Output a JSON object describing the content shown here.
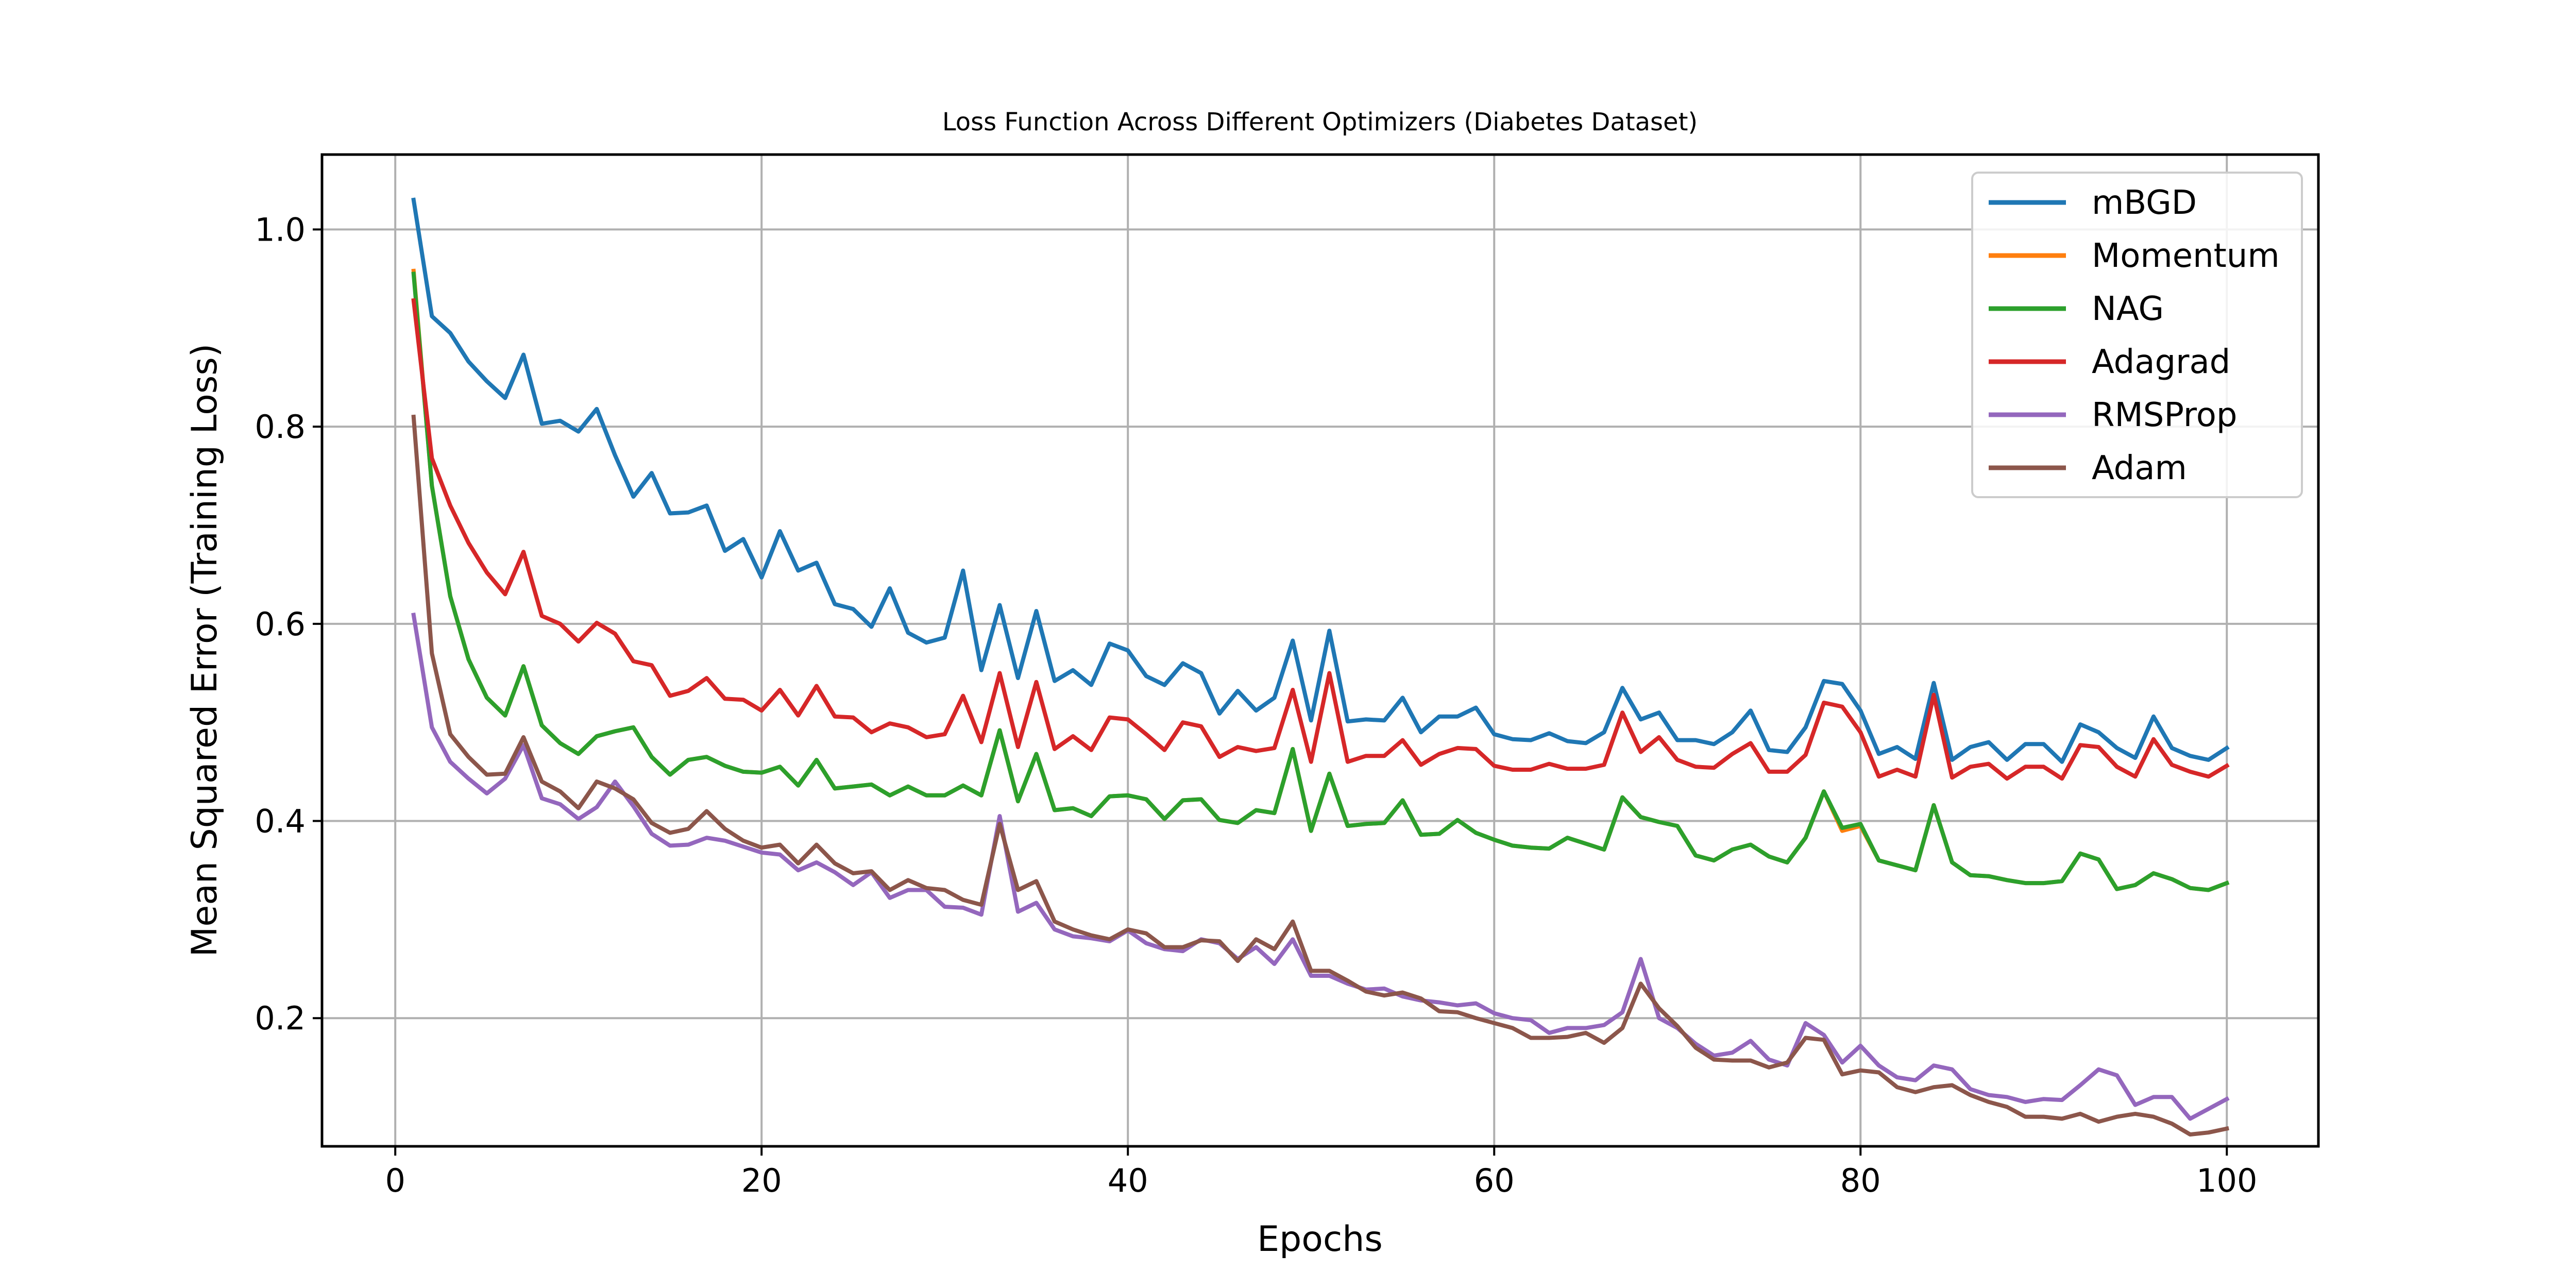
{
  "chart_data": {
    "type": "line",
    "title": "Loss Function Across Different Optimizers (Diabetes Dataset)",
    "xlabel": "Epochs",
    "ylabel": "Mean Squared Error (Training Loss)",
    "xlim": [
      -4,
      105
    ],
    "ylim": [
      0.07,
      1.076
    ],
    "xticks": [
      0,
      20,
      40,
      60,
      80,
      100
    ],
    "xtick_labels": [
      "0",
      "20",
      "40",
      "60",
      "80",
      "100"
    ],
    "yticks": [
      0.2,
      0.4,
      0.6,
      0.8,
      1.0
    ],
    "ytick_labels": [
      "0.2",
      "0.4",
      "0.6",
      "0.8",
      "1.0"
    ],
    "grid": true,
    "legend_position": "top-right",
    "x": [
      1,
      2,
      3,
      4,
      5,
      6,
      7,
      8,
      9,
      10,
      11,
      12,
      13,
      14,
      15,
      16,
      17,
      18,
      19,
      20,
      21,
      22,
      23,
      24,
      25,
      26,
      27,
      28,
      29,
      30,
      31,
      32,
      33,
      34,
      35,
      36,
      37,
      38,
      39,
      40,
      41,
      42,
      43,
      44,
      45,
      46,
      47,
      48,
      49,
      50,
      51,
      52,
      53,
      54,
      55,
      56,
      57,
      58,
      59,
      60,
      61,
      62,
      63,
      64,
      65,
      66,
      67,
      68,
      69,
      70,
      71,
      72,
      73,
      74,
      75,
      76,
      77,
      78,
      79,
      80,
      81,
      82,
      83,
      84,
      85,
      86,
      87,
      88,
      89,
      90,
      91,
      92,
      93,
      94,
      95,
      96,
      97,
      98,
      99,
      100
    ],
    "series": [
      {
        "name": "mBGD",
        "color": "#1f77b4",
        "values": [
          1.03,
          0.912,
          0.895,
          0.866,
          0.846,
          0.829,
          0.873,
          0.803,
          0.806,
          0.795,
          0.818,
          0.771,
          0.729,
          0.753,
          0.712,
          0.713,
          0.72,
          0.674,
          0.686,
          0.647,
          0.694,
          0.654,
          0.662,
          0.62,
          0.615,
          0.597,
          0.636,
          0.591,
          0.581,
          0.586,
          0.654,
          0.553,
          0.619,
          0.545,
          0.613,
          0.542,
          0.553,
          0.538,
          0.58,
          0.573,
          0.547,
          0.538,
          0.56,
          0.55,
          0.509,
          0.532,
          0.512,
          0.525,
          0.583,
          0.502,
          0.593,
          0.501,
          0.503,
          0.502,
          0.525,
          0.49,
          0.506,
          0.506,
          0.515,
          0.488,
          0.483,
          0.482,
          0.489,
          0.481,
          0.479,
          0.49,
          0.535,
          0.503,
          0.51,
          0.482,
          0.482,
          0.478,
          0.49,
          0.512,
          0.472,
          0.47,
          0.495,
          0.542,
          0.539,
          0.512,
          0.468,
          0.475,
          0.463,
          0.54,
          0.462,
          0.475,
          0.48,
          0.462,
          0.478,
          0.478,
          0.46,
          0.498,
          0.49,
          0.474,
          0.464,
          0.506,
          0.474,
          0.466,
          0.462,
          0.474
        ]
      },
      {
        "name": "Momentum",
        "color": "#ff7f0e",
        "values": [
          0.958,
          0.74,
          0.628,
          0.564,
          0.525,
          0.507,
          0.557,
          0.497,
          0.479,
          0.468,
          0.486,
          0.491,
          0.495,
          0.465,
          0.447,
          0.462,
          0.465,
          0.456,
          0.45,
          0.449,
          0.455,
          0.436,
          0.462,
          0.433,
          0.435,
          0.437,
          0.426,
          0.435,
          0.426,
          0.426,
          0.436,
          0.426,
          0.492,
          0.42,
          0.468,
          0.411,
          0.413,
          0.405,
          0.425,
          0.426,
          0.422,
          0.402,
          0.421,
          0.422,
          0.401,
          0.398,
          0.411,
          0.408,
          0.473,
          0.39,
          0.448,
          0.395,
          0.397,
          0.398,
          0.421,
          0.386,
          0.387,
          0.401,
          0.388,
          0.381,
          0.375,
          0.373,
          0.372,
          0.383,
          0.377,
          0.371,
          0.424,
          0.404,
          0.399,
          0.395,
          0.365,
          0.36,
          0.371,
          0.376,
          0.364,
          0.358,
          0.383,
          0.43,
          0.39,
          0.395,
          0.36,
          0.355,
          0.35,
          0.416,
          0.358,
          0.345,
          0.344,
          0.34,
          0.337,
          0.337,
          0.339,
          0.367,
          0.361,
          0.331,
          0.335,
          0.347,
          0.341,
          0.332,
          0.33,
          0.337
        ]
      },
      {
        "name": "NAG",
        "color": "#2ca02c",
        "values": [
          0.955,
          0.74,
          0.628,
          0.564,
          0.525,
          0.507,
          0.557,
          0.497,
          0.479,
          0.468,
          0.486,
          0.491,
          0.495,
          0.465,
          0.447,
          0.462,
          0.465,
          0.456,
          0.45,
          0.449,
          0.455,
          0.436,
          0.462,
          0.433,
          0.435,
          0.437,
          0.426,
          0.435,
          0.426,
          0.426,
          0.436,
          0.426,
          0.492,
          0.42,
          0.468,
          0.411,
          0.413,
          0.405,
          0.425,
          0.426,
          0.422,
          0.402,
          0.421,
          0.422,
          0.401,
          0.398,
          0.411,
          0.408,
          0.473,
          0.39,
          0.448,
          0.395,
          0.397,
          0.398,
          0.421,
          0.386,
          0.387,
          0.401,
          0.388,
          0.381,
          0.375,
          0.373,
          0.372,
          0.383,
          0.377,
          0.371,
          0.424,
          0.404,
          0.399,
          0.395,
          0.365,
          0.36,
          0.371,
          0.376,
          0.364,
          0.358,
          0.383,
          0.43,
          0.393,
          0.397,
          0.36,
          0.355,
          0.35,
          0.416,
          0.358,
          0.345,
          0.344,
          0.34,
          0.337,
          0.337,
          0.339,
          0.367,
          0.361,
          0.331,
          0.335,
          0.347,
          0.341,
          0.332,
          0.33,
          0.337
        ]
      },
      {
        "name": "Adagrad",
        "color": "#d62728",
        "values": [
          0.928,
          0.768,
          0.72,
          0.682,
          0.652,
          0.63,
          0.673,
          0.608,
          0.6,
          0.582,
          0.601,
          0.59,
          0.562,
          0.558,
          0.527,
          0.532,
          0.545,
          0.524,
          0.523,
          0.512,
          0.533,
          0.507,
          0.537,
          0.506,
          0.505,
          0.49,
          0.499,
          0.495,
          0.485,
          0.488,
          0.527,
          0.48,
          0.55,
          0.475,
          0.541,
          0.473,
          0.486,
          0.472,
          0.505,
          0.503,
          0.488,
          0.472,
          0.5,
          0.496,
          0.465,
          0.475,
          0.471,
          0.474,
          0.533,
          0.46,
          0.55,
          0.46,
          0.466,
          0.466,
          0.482,
          0.457,
          0.468,
          0.474,
          0.473,
          0.456,
          0.452,
          0.452,
          0.458,
          0.453,
          0.453,
          0.457,
          0.51,
          0.47,
          0.485,
          0.462,
          0.455,
          0.454,
          0.468,
          0.479,
          0.45,
          0.45,
          0.467,
          0.52,
          0.516,
          0.49,
          0.445,
          0.452,
          0.445,
          0.528,
          0.444,
          0.455,
          0.458,
          0.443,
          0.455,
          0.455,
          0.443,
          0.477,
          0.475,
          0.455,
          0.445,
          0.483,
          0.457,
          0.45,
          0.445,
          0.456
        ]
      },
      {
        "name": "RMSProp",
        "color": "#9467bd",
        "values": [
          0.609,
          0.495,
          0.46,
          0.443,
          0.428,
          0.443,
          0.477,
          0.423,
          0.417,
          0.402,
          0.414,
          0.44,
          0.415,
          0.387,
          0.375,
          0.376,
          0.383,
          0.38,
          0.374,
          0.368,
          0.366,
          0.35,
          0.358,
          0.348,
          0.335,
          0.348,
          0.322,
          0.33,
          0.33,
          0.313,
          0.312,
          0.305,
          0.405,
          0.308,
          0.317,
          0.29,
          0.283,
          0.281,
          0.278,
          0.289,
          0.276,
          0.27,
          0.268,
          0.28,
          0.276,
          0.26,
          0.272,
          0.255,
          0.28,
          0.243,
          0.243,
          0.235,
          0.229,
          0.23,
          0.222,
          0.218,
          0.216,
          0.213,
          0.215,
          0.205,
          0.2,
          0.198,
          0.185,
          0.19,
          0.19,
          0.193,
          0.206,
          0.26,
          0.2,
          0.19,
          0.174,
          0.162,
          0.165,
          0.177,
          0.158,
          0.152,
          0.195,
          0.183,
          0.155,
          0.172,
          0.152,
          0.14,
          0.137,
          0.152,
          0.148,
          0.128,
          0.122,
          0.12,
          0.115,
          0.118,
          0.117,
          0.132,
          0.148,
          0.142,
          0.112,
          0.12,
          0.12,
          0.098,
          0.108,
          0.118
        ]
      },
      {
        "name": "Adam",
        "color": "#8c564b",
        "values": [
          0.81,
          0.57,
          0.488,
          0.465,
          0.447,
          0.448,
          0.485,
          0.44,
          0.43,
          0.413,
          0.44,
          0.433,
          0.422,
          0.398,
          0.388,
          0.392,
          0.41,
          0.392,
          0.38,
          0.373,
          0.376,
          0.357,
          0.376,
          0.357,
          0.347,
          0.349,
          0.33,
          0.34,
          0.332,
          0.33,
          0.32,
          0.315,
          0.397,
          0.33,
          0.339,
          0.298,
          0.29,
          0.284,
          0.28,
          0.29,
          0.286,
          0.272,
          0.272,
          0.279,
          0.278,
          0.258,
          0.28,
          0.27,
          0.298,
          0.248,
          0.248,
          0.238,
          0.227,
          0.223,
          0.226,
          0.22,
          0.207,
          0.206,
          0.2,
          0.195,
          0.19,
          0.18,
          0.18,
          0.181,
          0.185,
          0.175,
          0.19,
          0.235,
          0.21,
          0.192,
          0.17,
          0.158,
          0.157,
          0.157,
          0.15,
          0.155,
          0.18,
          0.178,
          0.143,
          0.147,
          0.145,
          0.13,
          0.125,
          0.13,
          0.132,
          0.122,
          0.115,
          0.11,
          0.1,
          0.1,
          0.098,
          0.103,
          0.095,
          0.1,
          0.103,
          0.1,
          0.093,
          0.082,
          0.084,
          0.088
        ]
      }
    ]
  }
}
